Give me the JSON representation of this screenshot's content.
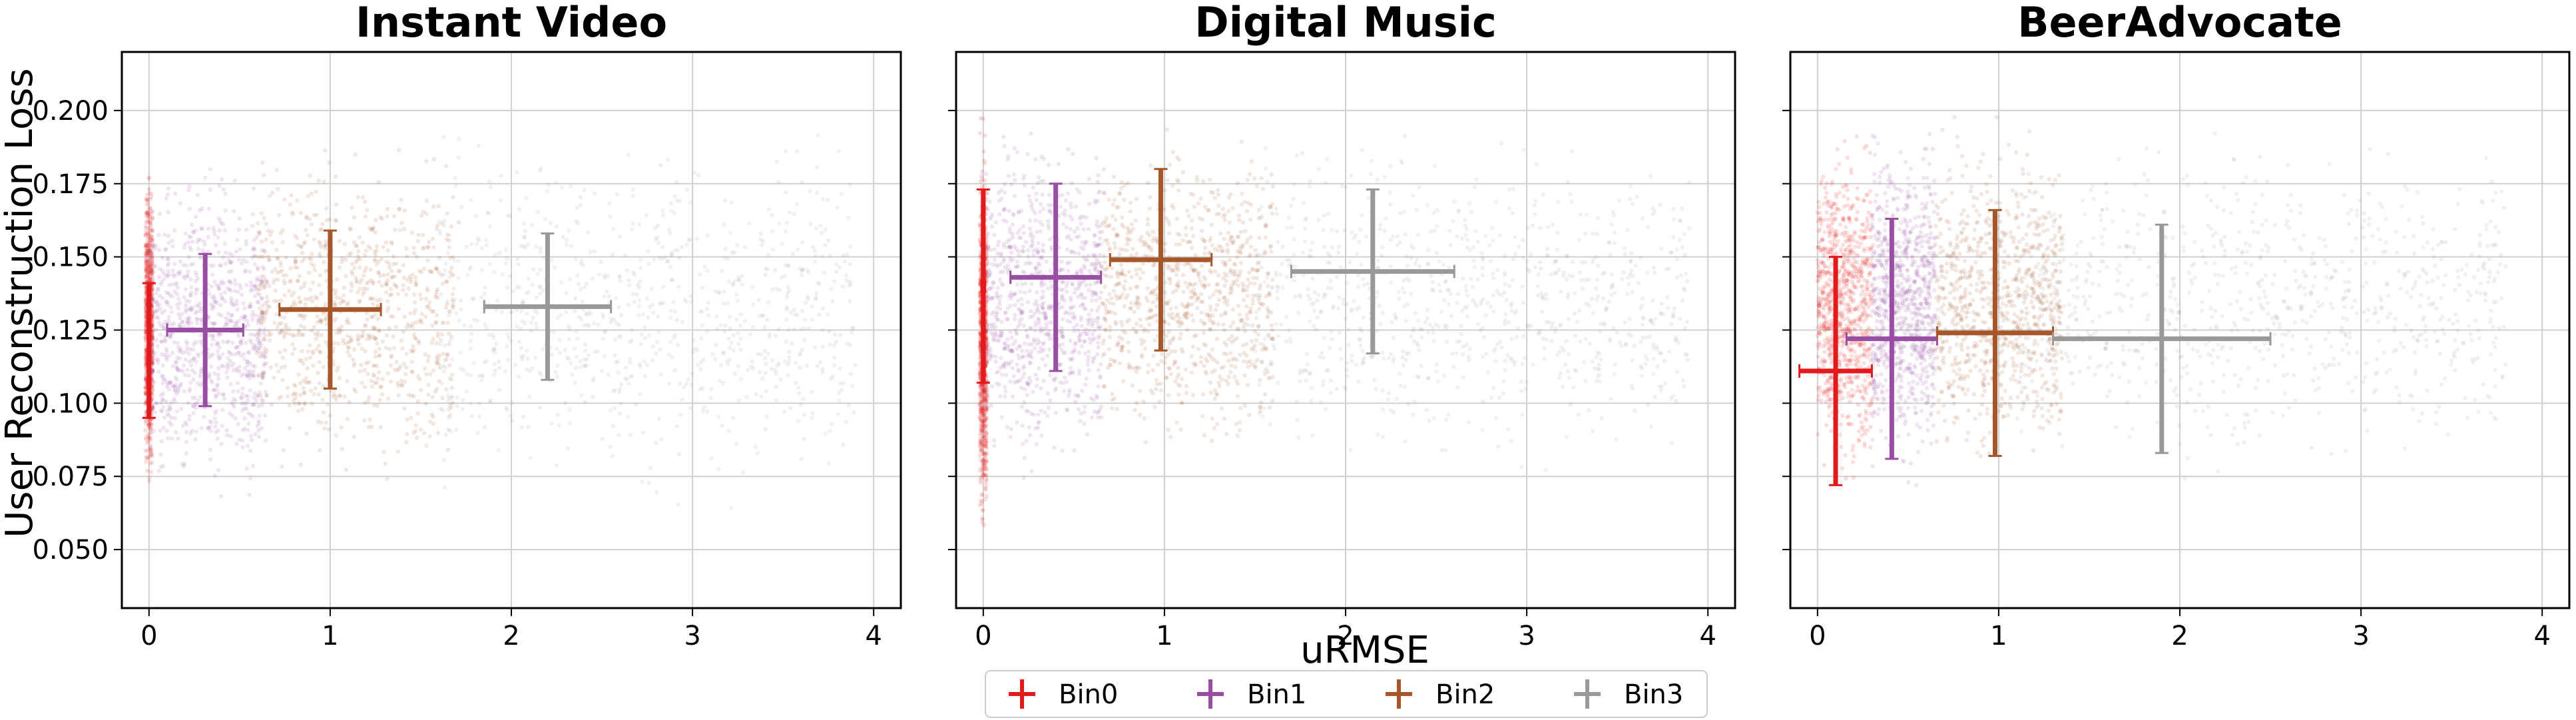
{
  "figure": {
    "ylabel": "User Reconstruction Loss",
    "xlabel": "uRMSE"
  },
  "legend": {
    "placement": "bottom-center",
    "entries": [
      {
        "label": "Bin0",
        "color": "#e31a1c"
      },
      {
        "label": "Bin1",
        "color": "#984ea3"
      },
      {
        "label": "Bin2",
        "color": "#a65628"
      },
      {
        "label": "Bin3",
        "color": "#999999"
      }
    ]
  },
  "chart_data": [
    {
      "type": "scatter",
      "title": "Instant Video",
      "xlabel": "uRMSE",
      "ylabel": "User Reconstruction Loss",
      "xlim": [
        -0.15,
        4.15
      ],
      "ylim": [
        0.03,
        0.22
      ],
      "x_ticks": [
        0,
        1,
        2,
        3,
        4
      ],
      "y_ticks": [
        0.05,
        0.075,
        0.1,
        0.125,
        0.15,
        0.175,
        0.2
      ],
      "y_tick_labels": [
        "0.050",
        "0.075",
        "0.100",
        "0.125",
        "0.150",
        "0.175",
        "0.200"
      ],
      "grid": true,
      "series": [
        {
          "name": "Bin0",
          "color": "#e31a1c",
          "x": 0.0,
          "y": 0.118,
          "xerr": 0.0,
          "yerr": 0.023,
          "cloud": {
            "x": [
              -0.02,
              0.02
            ],
            "y": [
              0.065,
              0.185
            ]
          }
        },
        {
          "name": "Bin1",
          "color": "#984ea3",
          "x": 0.31,
          "y": 0.125,
          "xerr": 0.21,
          "yerr": 0.026,
          "cloud": {
            "x": [
              0.0,
              0.65
            ],
            "y": [
              0.06,
              0.19
            ]
          }
        },
        {
          "name": "Bin2",
          "color": "#a65628",
          "x": 1.0,
          "y": 0.132,
          "xerr": 0.28,
          "yerr": 0.027,
          "cloud": {
            "x": [
              0.6,
              1.68
            ],
            "y": [
              0.065,
              0.195
            ]
          }
        },
        {
          "name": "Bin3",
          "color": "#999999",
          "x": 2.2,
          "y": 0.133,
          "xerr": 0.35,
          "yerr": 0.025,
          "cloud": {
            "x": [
              1.6,
              3.9
            ],
            "y": [
              0.06,
              0.2
            ]
          }
        }
      ]
    },
    {
      "type": "scatter",
      "title": "Digital Music",
      "xlabel": "uRMSE",
      "ylabel": "User Reconstruction Loss",
      "xlim": [
        -0.15,
        4.15
      ],
      "ylim": [
        0.03,
        0.22
      ],
      "x_ticks": [
        0,
        1,
        2,
        3,
        4
      ],
      "y_ticks": [
        0.05,
        0.075,
        0.1,
        0.125,
        0.15,
        0.175,
        0.2
      ],
      "y_tick_labels": [
        "0.050",
        "0.075",
        "0.100",
        "0.125",
        "0.150",
        "0.175",
        "0.200"
      ],
      "grid": true,
      "series": [
        {
          "name": "Bin0",
          "color": "#e31a1c",
          "x": 0.0,
          "y": 0.14,
          "xerr": 0.01,
          "yerr": 0.033,
          "cloud": {
            "x": [
              -0.02,
              0.02
            ],
            "y": [
              0.045,
              0.2
            ]
          }
        },
        {
          "name": "Bin1",
          "color": "#984ea3",
          "x": 0.4,
          "y": 0.143,
          "xerr": 0.25,
          "yerr": 0.032,
          "cloud": {
            "x": [
              0.0,
              0.65
            ],
            "y": [
              0.07,
              0.2
            ]
          }
        },
        {
          "name": "Bin2",
          "color": "#a65628",
          "x": 0.98,
          "y": 0.149,
          "xerr": 0.28,
          "yerr": 0.031,
          "cloud": {
            "x": [
              0.65,
              1.6
            ],
            "y": [
              0.075,
              0.2
            ]
          }
        },
        {
          "name": "Bin3",
          "color": "#999999",
          "x": 2.15,
          "y": 0.145,
          "xerr": 0.45,
          "yerr": 0.028,
          "cloud": {
            "x": [
              1.5,
              3.9
            ],
            "y": [
              0.07,
              0.2
            ]
          }
        }
      ]
    },
    {
      "type": "scatter",
      "title": "BeerAdvocate",
      "xlabel": "uRMSE",
      "ylabel": "User Reconstruction Loss",
      "xlim": [
        -0.15,
        4.15
      ],
      "ylim": [
        0.03,
        0.22
      ],
      "x_ticks": [
        0,
        1,
        2,
        3,
        4
      ],
      "y_ticks": [
        0.05,
        0.075,
        0.1,
        0.125,
        0.15,
        0.175,
        0.2
      ],
      "y_tick_labels": [
        "0.050",
        "0.075",
        "0.100",
        "0.125",
        "0.150",
        "0.175",
        "0.200"
      ],
      "grid": true,
      "series": [
        {
          "name": "Bin0",
          "color": "#e31a1c",
          "x": 0.1,
          "y": 0.111,
          "xerr": 0.2,
          "yerr": 0.039,
          "cloud": {
            "x": [
              0.0,
              0.3
            ],
            "y": [
              0.065,
              0.2
            ]
          }
        },
        {
          "name": "Bin1",
          "color": "#984ea3",
          "x": 0.41,
          "y": 0.122,
          "xerr": 0.25,
          "yerr": 0.041,
          "cloud": {
            "x": [
              0.3,
              0.65
            ],
            "y": [
              0.068,
              0.2
            ]
          }
        },
        {
          "name": "Bin2",
          "color": "#a65628",
          "x": 0.98,
          "y": 0.124,
          "xerr": 0.32,
          "yerr": 0.042,
          "cloud": {
            "x": [
              0.65,
              1.35
            ],
            "y": [
              0.07,
              0.2
            ]
          }
        },
        {
          "name": "Bin3",
          "color": "#999999",
          "x": 1.9,
          "y": 0.122,
          "xerr": 0.6,
          "yerr": 0.039,
          "cloud": {
            "x": [
              1.1,
              3.8
            ],
            "y": [
              0.07,
              0.2
            ]
          }
        }
      ]
    }
  ]
}
